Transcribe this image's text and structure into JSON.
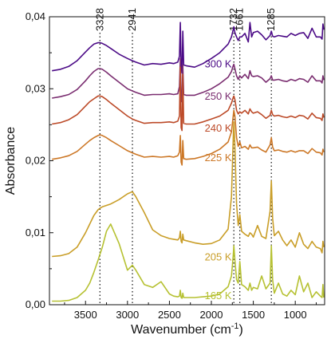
{
  "chart_data": {
    "type": "line",
    "title": "",
    "xlabel": "Wavenumber (cm",
    "xlabel_sup": "-1",
    "xlabel_close": ")",
    "ylabel": "Absorbance",
    "xlim": [
      3930,
      650
    ],
    "ylim": [
      0,
      0.04
    ],
    "x_reversed": true,
    "grid": false,
    "x_ticks": [
      {
        "value": 3500,
        "label": "3500"
      },
      {
        "value": 3000,
        "label": "3000"
      },
      {
        "value": 2500,
        "label": "2500"
      },
      {
        "value": 2000,
        "label": "2000"
      },
      {
        "value": 1500,
        "label": "1500"
      },
      {
        "value": 1000,
        "label": "1000"
      }
    ],
    "y_ticks": [
      {
        "value": 0,
        "label": "0,00"
      },
      {
        "value": 0.01,
        "label": "0,01"
      },
      {
        "value": 0.02,
        "label": "0,02"
      },
      {
        "value": 0.03,
        "label": "0,03"
      },
      {
        "value": 0.04,
        "label": "0,04"
      }
    ],
    "annotations": [
      {
        "x": 3328,
        "label": "3328"
      },
      {
        "x": 2941,
        "label": "2941"
      },
      {
        "x": 1732,
        "label": "1732"
      },
      {
        "x": 1661,
        "label": "1661"
      },
      {
        "x": 1285,
        "label": "1285"
      }
    ],
    "series": [
      {
        "name": "300 K",
        "color": "#4b0a86",
        "label_x": 2080,
        "label_y": 0.0334,
        "x": [
          3900,
          3800,
          3700,
          3600,
          3500,
          3450,
          3400,
          3350,
          3328,
          3300,
          3250,
          3200,
          3100,
          3000,
          2941,
          2900,
          2800,
          2700,
          2600,
          2500,
          2450,
          2400,
          2380,
          2370,
          2360,
          2350,
          2340,
          2330,
          2300,
          2200,
          2100,
          2000,
          1900,
          1800,
          1760,
          1740,
          1732,
          1720,
          1700,
          1680,
          1661,
          1640,
          1600,
          1560,
          1540,
          1520,
          1500,
          1450,
          1400,
          1350,
          1300,
          1285,
          1270,
          1250,
          1200,
          1150,
          1100,
          1050,
          1000,
          950,
          900,
          850,
          800,
          750,
          700,
          680,
          670,
          660
        ],
        "y": [
          0.0325,
          0.0327,
          0.0331,
          0.0339,
          0.0351,
          0.0357,
          0.0362,
          0.0364,
          0.0364,
          0.0363,
          0.036,
          0.0356,
          0.0348,
          0.0342,
          0.0339,
          0.0337,
          0.0333,
          0.0335,
          0.0334,
          0.0336,
          0.0335,
          0.0337,
          0.0345,
          0.0392,
          0.033,
          0.0322,
          0.038,
          0.0333,
          0.0332,
          0.033,
          0.0335,
          0.0342,
          0.035,
          0.0362,
          0.0372,
          0.0382,
          0.0386,
          0.0378,
          0.0372,
          0.0367,
          0.0372,
          0.0372,
          0.0377,
          0.0365,
          0.0392,
          0.0372,
          0.0378,
          0.038,
          0.0375,
          0.0368,
          0.0374,
          0.038,
          0.0373,
          0.0372,
          0.0374,
          0.0373,
          0.0372,
          0.0377,
          0.0374,
          0.0377,
          0.0378,
          0.037,
          0.0384,
          0.0372,
          0.0372,
          0.0369,
          0.039,
          0.0382
        ]
      },
      {
        "name": "250 K",
        "color": "#7a2d70",
        "label_x": 2080,
        "label_y": 0.0289,
        "x": [
          3900,
          3800,
          3700,
          3600,
          3500,
          3450,
          3400,
          3350,
          3328,
          3300,
          3250,
          3200,
          3100,
          3000,
          2941,
          2900,
          2800,
          2700,
          2600,
          2500,
          2450,
          2400,
          2380,
          2370,
          2360,
          2350,
          2340,
          2330,
          2300,
          2200,
          2100,
          2000,
          1900,
          1800,
          1760,
          1740,
          1732,
          1720,
          1700,
          1680,
          1661,
          1640,
          1600,
          1560,
          1540,
          1520,
          1500,
          1450,
          1400,
          1350,
          1300,
          1285,
          1270,
          1250,
          1200,
          1150,
          1100,
          1050,
          1000,
          950,
          900,
          850,
          800,
          750,
          700,
          680,
          670,
          660
        ],
        "y": [
          0.0287,
          0.0289,
          0.0292,
          0.0299,
          0.0311,
          0.0318,
          0.0324,
          0.0328,
          0.0328,
          0.0327,
          0.0323,
          0.0318,
          0.0309,
          0.03,
          0.0297,
          0.0295,
          0.0291,
          0.0292,
          0.0292,
          0.0293,
          0.0292,
          0.0293,
          0.0303,
          0.0342,
          0.0287,
          0.0282,
          0.0333,
          0.0292,
          0.0291,
          0.0291,
          0.0295,
          0.03,
          0.0307,
          0.0316,
          0.0324,
          0.0332,
          0.0334,
          0.0328,
          0.0318,
          0.0313,
          0.0318,
          0.0315,
          0.032,
          0.0314,
          0.0325,
          0.0318,
          0.0317,
          0.0318,
          0.0315,
          0.0309,
          0.0314,
          0.0318,
          0.0312,
          0.0312,
          0.0313,
          0.0311,
          0.031,
          0.0313,
          0.0311,
          0.0314,
          0.0313,
          0.0309,
          0.0318,
          0.0311,
          0.0311,
          0.0308,
          0.0318,
          0.0312
        ]
      },
      {
        "name": "240 K",
        "color": "#bc4a28",
        "label_x": 2080,
        "label_y": 0.0245,
        "x": [
          3900,
          3800,
          3700,
          3600,
          3500,
          3450,
          3400,
          3350,
          3328,
          3300,
          3250,
          3200,
          3100,
          3000,
          2941,
          2900,
          2800,
          2700,
          2600,
          2500,
          2450,
          2400,
          2380,
          2370,
          2360,
          2350,
          2340,
          2330,
          2300,
          2200,
          2100,
          2000,
          1900,
          1800,
          1760,
          1740,
          1732,
          1720,
          1700,
          1680,
          1661,
          1640,
          1600,
          1560,
          1540,
          1520,
          1500,
          1450,
          1400,
          1350,
          1300,
          1285,
          1270,
          1250,
          1200,
          1150,
          1100,
          1050,
          1000,
          950,
          900,
          850,
          800,
          750,
          700,
          680,
          670,
          660
        ],
        "y": [
          0.0251,
          0.0253,
          0.0257,
          0.0264,
          0.0276,
          0.0282,
          0.0286,
          0.029,
          0.029,
          0.0289,
          0.0285,
          0.028,
          0.0271,
          0.0262,
          0.0258,
          0.0256,
          0.0252,
          0.0253,
          0.0253,
          0.0254,
          0.0253,
          0.0255,
          0.0262,
          0.033,
          0.0246,
          0.0242,
          0.032,
          0.0252,
          0.0251,
          0.0251,
          0.0254,
          0.0258,
          0.0262,
          0.027,
          0.028,
          0.0288,
          0.029,
          0.0285,
          0.027,
          0.0265,
          0.0268,
          0.0266,
          0.027,
          0.0265,
          0.0272,
          0.0268,
          0.0266,
          0.0268,
          0.0264,
          0.0259,
          0.0263,
          0.027,
          0.0264,
          0.0262,
          0.0263,
          0.0261,
          0.026,
          0.0262,
          0.026,
          0.0263,
          0.0262,
          0.0258,
          0.0266,
          0.026,
          0.0259,
          0.0256,
          0.0265,
          0.026
        ]
      },
      {
        "name": "225 K",
        "color": "#cc7726",
        "label_x": 2080,
        "label_y": 0.0204,
        "x": [
          3900,
          3800,
          3700,
          3600,
          3500,
          3450,
          3400,
          3350,
          3328,
          3300,
          3250,
          3200,
          3100,
          3000,
          2941,
          2900,
          2800,
          2700,
          2600,
          2500,
          2450,
          2400,
          2380,
          2370,
          2360,
          2350,
          2340,
          2330,
          2300,
          2200,
          2100,
          2000,
          1900,
          1800,
          1760,
          1740,
          1732,
          1720,
          1700,
          1680,
          1661,
          1640,
          1600,
          1560,
          1540,
          1520,
          1500,
          1450,
          1400,
          1350,
          1300,
          1285,
          1270,
          1250,
          1200,
          1150,
          1100,
          1050,
          1000,
          950,
          900,
          850,
          800,
          750,
          700,
          680,
          670,
          660
        ],
        "y": [
          0.0202,
          0.0204,
          0.0207,
          0.0213,
          0.0223,
          0.0228,
          0.0232,
          0.0235,
          0.0236,
          0.0235,
          0.0232,
          0.0228,
          0.0221,
          0.0214,
          0.0211,
          0.0209,
          0.0205,
          0.0206,
          0.0205,
          0.0206,
          0.0205,
          0.0207,
          0.0212,
          0.0235,
          0.0198,
          0.0194,
          0.0228,
          0.0203,
          0.0202,
          0.0203,
          0.0206,
          0.021,
          0.0216,
          0.0226,
          0.024,
          0.0262,
          0.027,
          0.0262,
          0.0232,
          0.022,
          0.0226,
          0.0218,
          0.022,
          0.0216,
          0.0222,
          0.0218,
          0.0218,
          0.0219,
          0.0215,
          0.0212,
          0.0222,
          0.0232,
          0.0219,
          0.0214,
          0.0215,
          0.0213,
          0.0212,
          0.0214,
          0.0212,
          0.0214,
          0.0214,
          0.021,
          0.0217,
          0.0212,
          0.0211,
          0.0208,
          0.0216,
          0.0212
        ]
      },
      {
        "name": "205 K",
        "color": "#c99e28",
        "label_x": 2080,
        "label_y": 0.0066,
        "x": [
          3900,
          3800,
          3700,
          3600,
          3500,
          3450,
          3400,
          3350,
          3328,
          3300,
          3250,
          3200,
          3100,
          3000,
          2941,
          2900,
          2800,
          2700,
          2600,
          2500,
          2450,
          2400,
          2380,
          2370,
          2360,
          2350,
          2340,
          2330,
          2300,
          2200,
          2100,
          2000,
          1900,
          1800,
          1760,
          1740,
          1732,
          1720,
          1700,
          1680,
          1661,
          1640,
          1600,
          1560,
          1540,
          1520,
          1500,
          1450,
          1400,
          1350,
          1300,
          1285,
          1270,
          1250,
          1200,
          1150,
          1100,
          1050,
          1000,
          950,
          900,
          850,
          800,
          750,
          700,
          680,
          670,
          660
        ],
        "y": [
          0.0067,
          0.0068,
          0.0071,
          0.008,
          0.01,
          0.0112,
          0.0124,
          0.0132,
          0.0134,
          0.0136,
          0.0138,
          0.014,
          0.0146,
          0.0154,
          0.0157,
          0.015,
          0.0128,
          0.0104,
          0.0096,
          0.0092,
          0.0091,
          0.009,
          0.0093,
          0.0102,
          0.0088,
          0.0086,
          0.0098,
          0.009,
          0.0089,
          0.0086,
          0.0084,
          0.0085,
          0.009,
          0.0105,
          0.015,
          0.023,
          0.0254,
          0.022,
          0.014,
          0.011,
          0.0125,
          0.0102,
          0.0098,
          0.0095,
          0.01,
          0.0098,
          0.0094,
          0.011,
          0.0095,
          0.0092,
          0.013,
          0.0172,
          0.012,
          0.0096,
          0.0102,
          0.009,
          0.0082,
          0.009,
          0.008,
          0.01,
          0.0084,
          0.0078,
          0.0088,
          0.008,
          0.0078,
          0.0072,
          0.0088,
          0.008
        ]
      },
      {
        "name": "165 K",
        "color": "#b6c132",
        "label_x": 2080,
        "label_y": 0.0012,
        "x": [
          3900,
          3800,
          3700,
          3600,
          3500,
          3450,
          3400,
          3350,
          3328,
          3300,
          3250,
          3200,
          3100,
          3000,
          2941,
          2900,
          2800,
          2700,
          2600,
          2500,
          2450,
          2400,
          2380,
          2370,
          2360,
          2350,
          2340,
          2330,
          2300,
          2200,
          2100,
          2000,
          1900,
          1800,
          1760,
          1740,
          1732,
          1720,
          1700,
          1680,
          1661,
          1640,
          1600,
          1560,
          1540,
          1520,
          1500,
          1450,
          1400,
          1350,
          1300,
          1285,
          1270,
          1250,
          1200,
          1150,
          1100,
          1050,
          1000,
          950,
          900,
          850,
          800,
          750,
          700,
          680,
          670,
          660
        ],
        "y": [
          0.0005,
          0.0005,
          0.0006,
          0.001,
          0.002,
          0.003,
          0.0045,
          0.0062,
          0.007,
          0.008,
          0.0102,
          0.0112,
          0.0085,
          0.0048,
          0.0055,
          0.0048,
          0.0028,
          0.0024,
          0.0032,
          0.0015,
          0.0012,
          0.0011,
          0.0012,
          0.002,
          0.001,
          0.0009,
          0.0016,
          0.001,
          0.001,
          0.001,
          0.0011,
          0.0012,
          0.0015,
          0.0025,
          0.004,
          0.0068,
          0.0082,
          0.0062,
          0.0035,
          0.003,
          0.006,
          0.0028,
          0.0025,
          0.002,
          0.003,
          0.002,
          0.0024,
          0.0022,
          0.004,
          0.0022,
          0.003,
          0.0082,
          0.0035,
          0.0016,
          0.003,
          0.0015,
          0.0012,
          0.002,
          0.0014,
          0.004,
          0.0018,
          0.003,
          0.001,
          0.0018,
          0.0012,
          0.001,
          0.0028,
          0.001
        ]
      }
    ]
  }
}
